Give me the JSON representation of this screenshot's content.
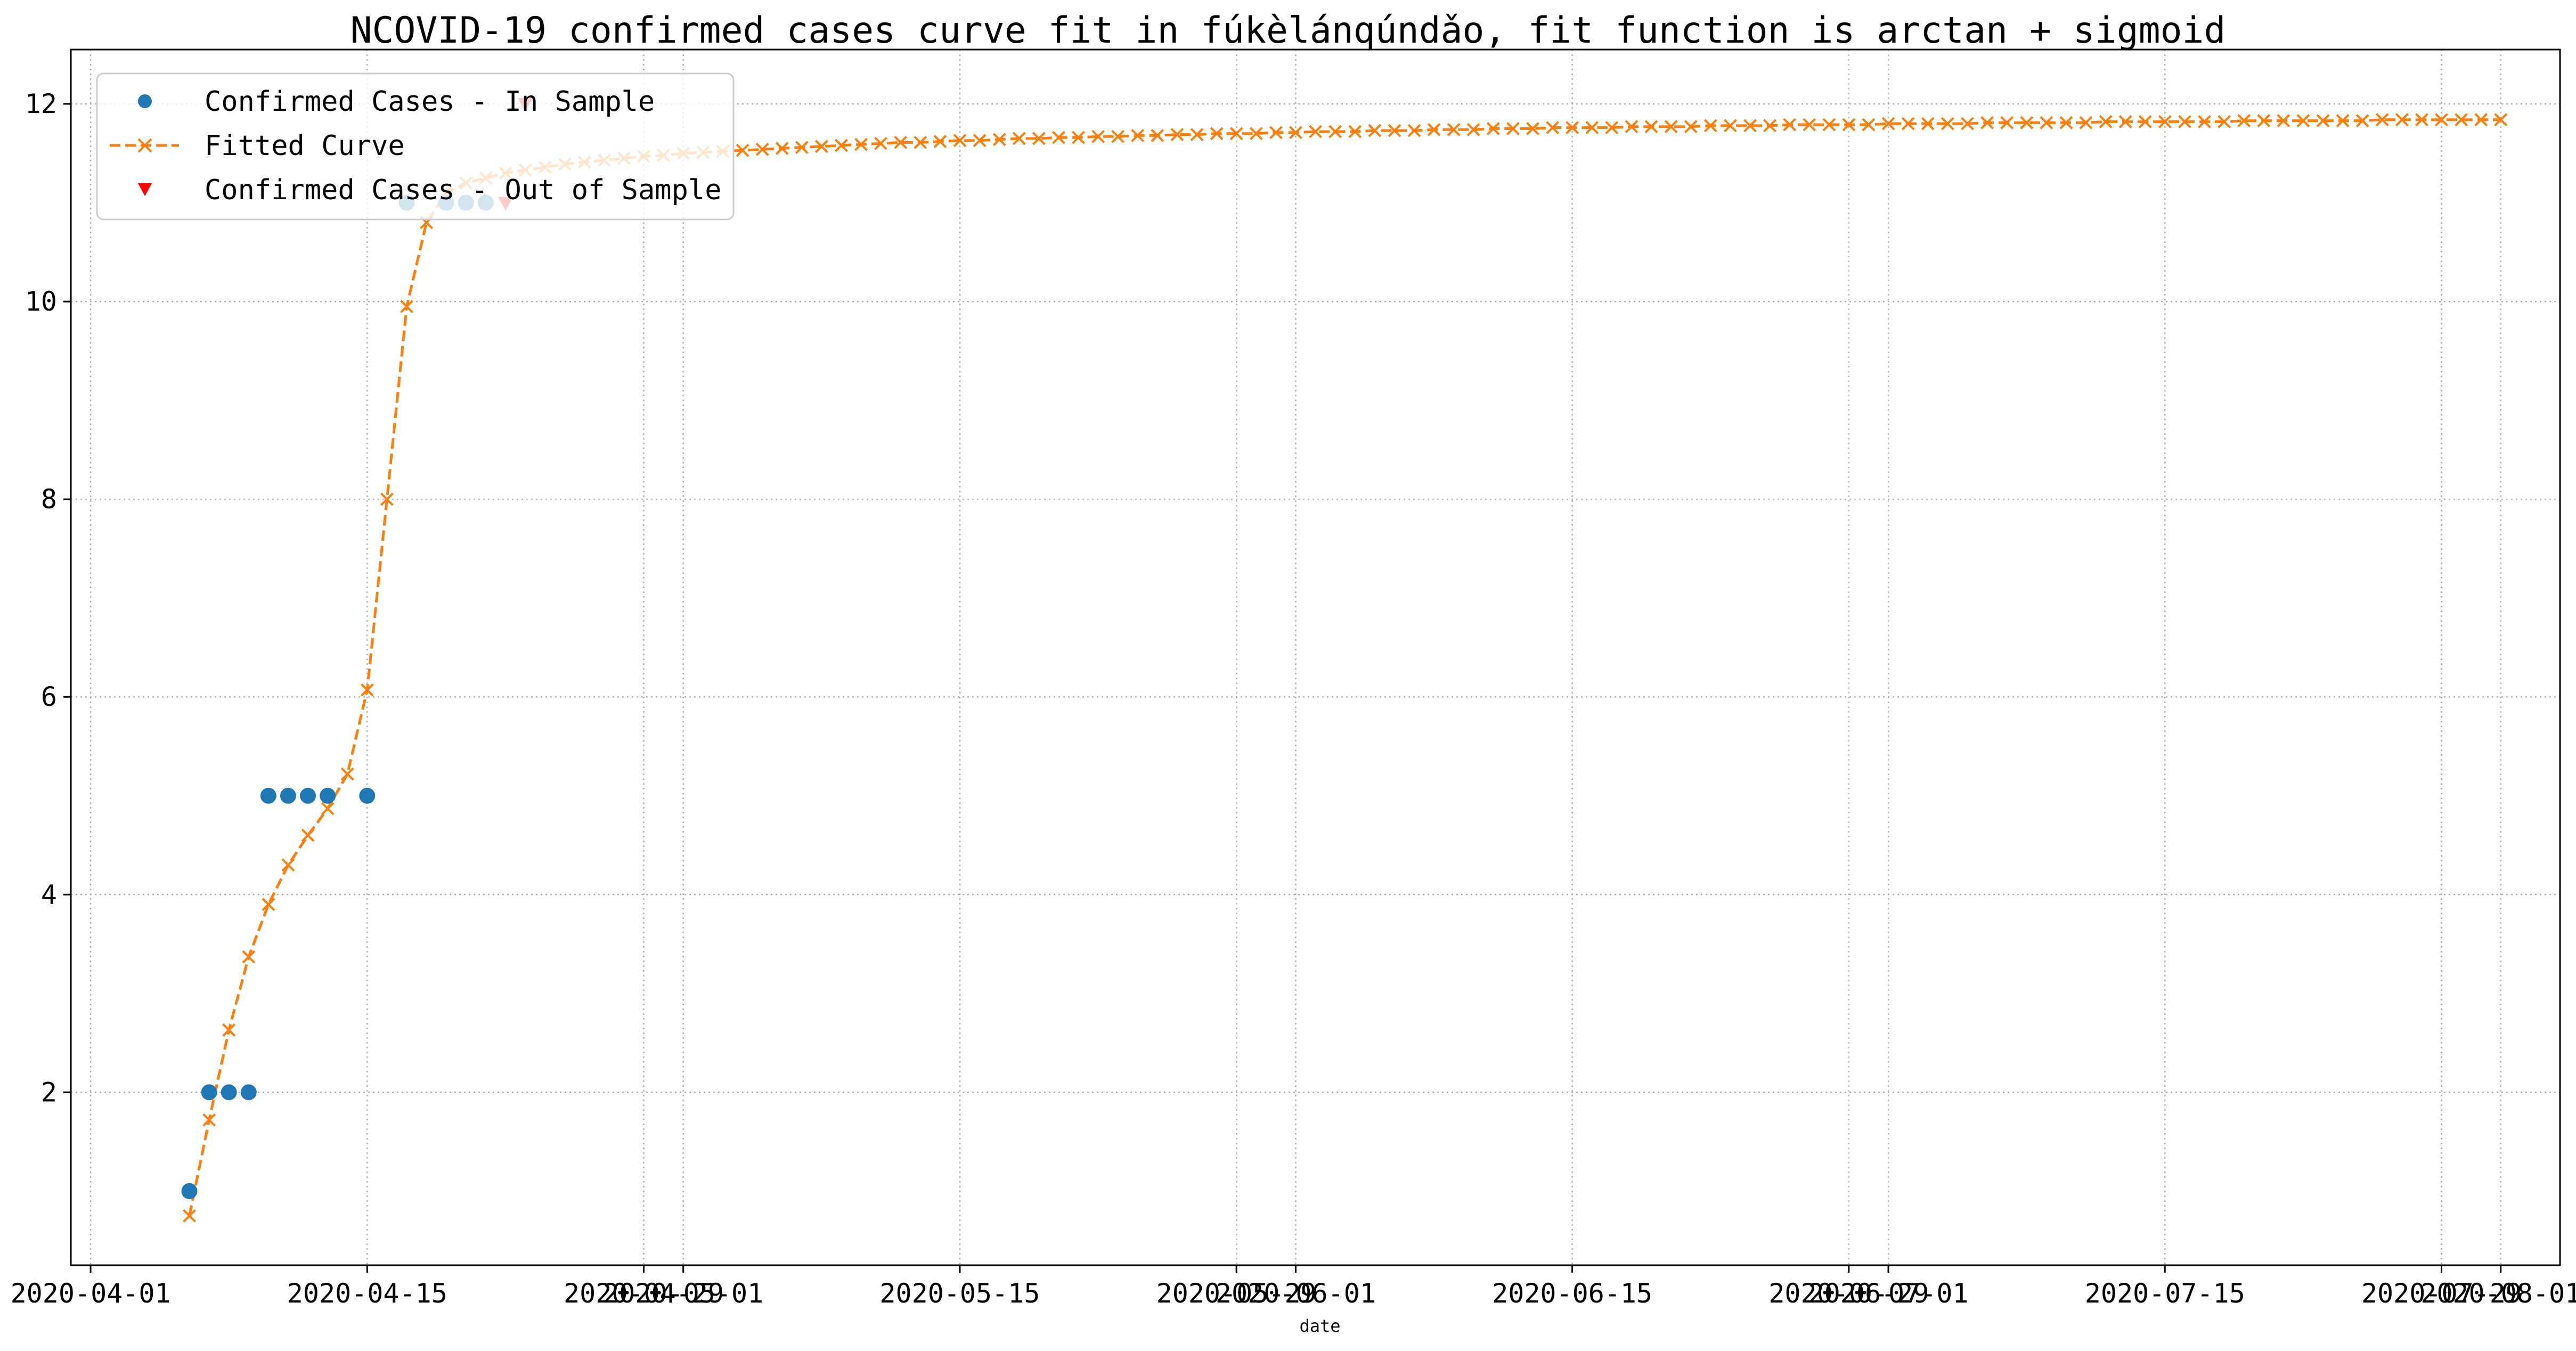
{
  "chart_data": {
    "type": "line",
    "title": "NCOVID-19 confirmed cases curve fit in fúkèlánqúndǎo, fit function is arctan + sigmoid",
    "xlabel": "date",
    "ylabel": "",
    "xlim": [
      "2020-03-31",
      "2020-08-04"
    ],
    "ylim": [
      0.25,
      12.55
    ],
    "grid": true,
    "legend_position": "top-left",
    "x_ticks": [
      "2020-04-01",
      "2020-04-15",
      "2020-04-29",
      "2020-05-01",
      "2020-05-15",
      "2020-05-29",
      "2020-06-01",
      "2020-06-15",
      "2020-06-29",
      "2020-07-01",
      "2020-07-15",
      "2020-07-29",
      "2020-08-01"
    ],
    "y_ticks": [
      2,
      4,
      6,
      8,
      10,
      12
    ],
    "colors": {
      "in_sample": "#1f77b4",
      "fit": "#ff7f0e",
      "out_sample": "#ff0000",
      "grid": "#b0b0b0"
    },
    "series": [
      {
        "name": "Confirmed Cases - In Sample",
        "marker": "circle",
        "x": [
          "2020-04-06",
          "2020-04-07",
          "2020-04-08",
          "2020-04-09",
          "2020-04-10",
          "2020-04-11",
          "2020-04-12",
          "2020-04-13",
          "2020-04-15",
          "2020-04-17",
          "2020-04-19",
          "2020-04-20",
          "2020-04-21"
        ],
        "y": [
          1,
          2,
          2,
          2,
          5,
          5,
          5,
          5,
          5,
          11,
          11,
          11,
          11
        ]
      },
      {
        "name": "Fitted Curve",
        "marker": "x",
        "line": "dashed",
        "start": "2020-04-06",
        "y": [
          0.75,
          1.72,
          2.63,
          3.37,
          3.9,
          4.3,
          4.6,
          4.87,
          5.22,
          6.07,
          8.0,
          9.95,
          10.8,
          11.1,
          11.2,
          11.25,
          11.3,
          11.33,
          11.36,
          11.39,
          11.41,
          11.43,
          11.45,
          11.47,
          11.48,
          11.5,
          11.51,
          11.52,
          11.53,
          11.54,
          11.55,
          11.56,
          11.57,
          11.58,
          11.59,
          11.6,
          11.61,
          11.61,
          11.62,
          11.63,
          11.63,
          11.64,
          11.65,
          11.65,
          11.66,
          11.66,
          11.67,
          11.67,
          11.68,
          11.68,
          11.69,
          11.69,
          11.7,
          11.7,
          11.7,
          11.71,
          11.71,
          11.72,
          11.72,
          11.72,
          11.73,
          11.73,
          11.73,
          11.74,
          11.74,
          11.74,
          11.75,
          11.75,
          11.75,
          11.76,
          11.76,
          11.76,
          11.76,
          11.77,
          11.77,
          11.77,
          11.77,
          11.78,
          11.78,
          11.78,
          11.78,
          11.79,
          11.79,
          11.79,
          11.79,
          11.79,
          11.8,
          11.8,
          11.8,
          11.8,
          11.8,
          11.81,
          11.81,
          11.81,
          11.81,
          11.81,
          11.81,
          11.82,
          11.82,
          11.82,
          11.82,
          11.82,
          11.82,
          11.82,
          11.83,
          11.83,
          11.83,
          11.83,
          11.83,
          11.83,
          11.83,
          11.84,
          11.84,
          11.84,
          11.84,
          11.84,
          11.84,
          11.84
        ]
      },
      {
        "name": "Confirmed Cases - Out of Sample",
        "marker": "triangle_down",
        "x": [
          "2020-04-22",
          "2020-04-23"
        ],
        "y": [
          11,
          12
        ]
      }
    ]
  }
}
